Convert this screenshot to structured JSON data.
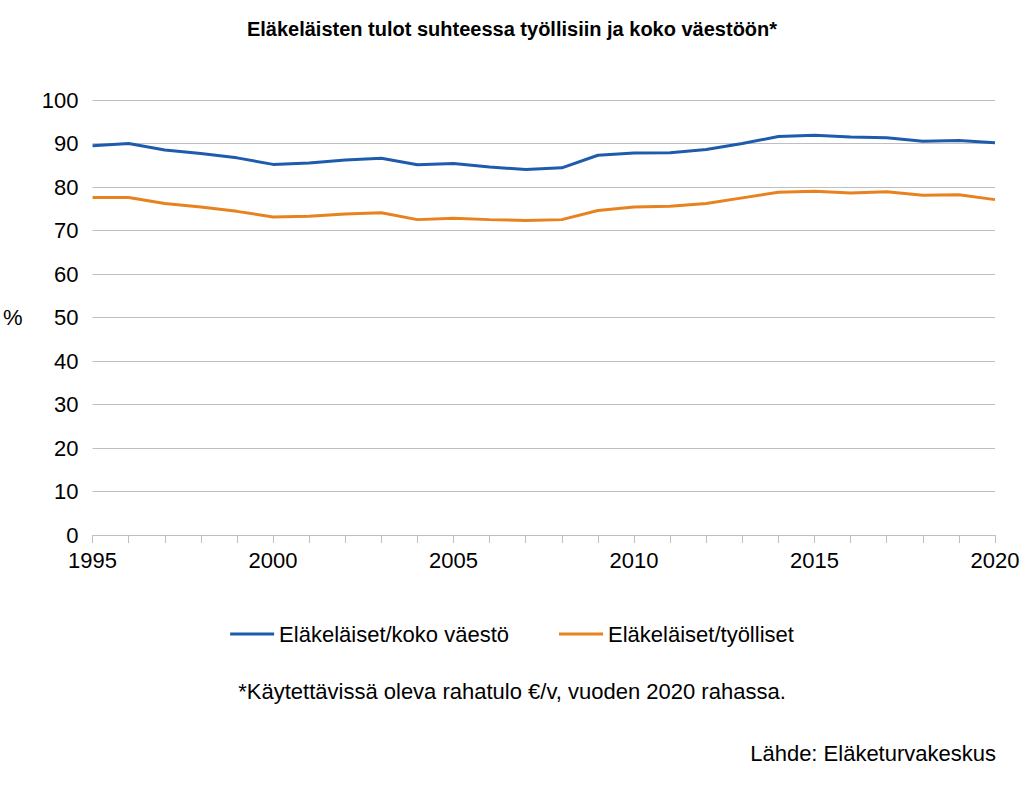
{
  "chart_data": {
    "type": "line",
    "title": "Eläkeläisten tulot suhteessa työllisiin ja koko väestöön*",
    "y_label": "%",
    "footnote": "*Käytettävissä oleva rahatulo €/v, vuoden 2020 rahassa.",
    "source": "Lähde: Eläketurvakeskus",
    "x": [
      1995,
      1996,
      1997,
      1998,
      1999,
      2000,
      2001,
      2002,
      2003,
      2004,
      2005,
      2006,
      2007,
      2008,
      2009,
      2010,
      2011,
      2012,
      2013,
      2014,
      2015,
      2016,
      2017,
      2018,
      2019,
      2020
    ],
    "series": [
      {
        "name": "Eläkeläiset/koko väestö",
        "color": "#1f5bad",
        "values": [
          89.5,
          90.0,
          88.5,
          87.7,
          86.7,
          85.2,
          85.5,
          86.2,
          86.6,
          85.1,
          85.4,
          84.6,
          84.0,
          84.4,
          87.3,
          87.8,
          87.9,
          88.6,
          90.0,
          91.6,
          91.9,
          91.5,
          91.3,
          90.5,
          90.7,
          90.2
        ]
      },
      {
        "name": "Eläkeläiset/työlliset",
        "color": "#e8821e",
        "values": [
          77.6,
          77.6,
          76.2,
          75.4,
          74.4,
          73.1,
          73.3,
          73.8,
          74.1,
          72.5,
          72.8,
          72.5,
          72.3,
          72.5,
          74.6,
          75.4,
          75.6,
          76.2,
          77.5,
          78.8,
          79.0,
          78.6,
          78.9,
          78.1,
          78.2,
          77.1
        ]
      }
    ],
    "xlim": [
      1995,
      2020
    ],
    "xticks": [
      1995,
      2000,
      2005,
      2010,
      2015,
      2020
    ],
    "ylim": [
      0,
      100
    ],
    "yticks": [
      0,
      10,
      20,
      30,
      40,
      50,
      60,
      70,
      80,
      90,
      100
    ],
    "grid": true,
    "legend": "bottom"
  }
}
